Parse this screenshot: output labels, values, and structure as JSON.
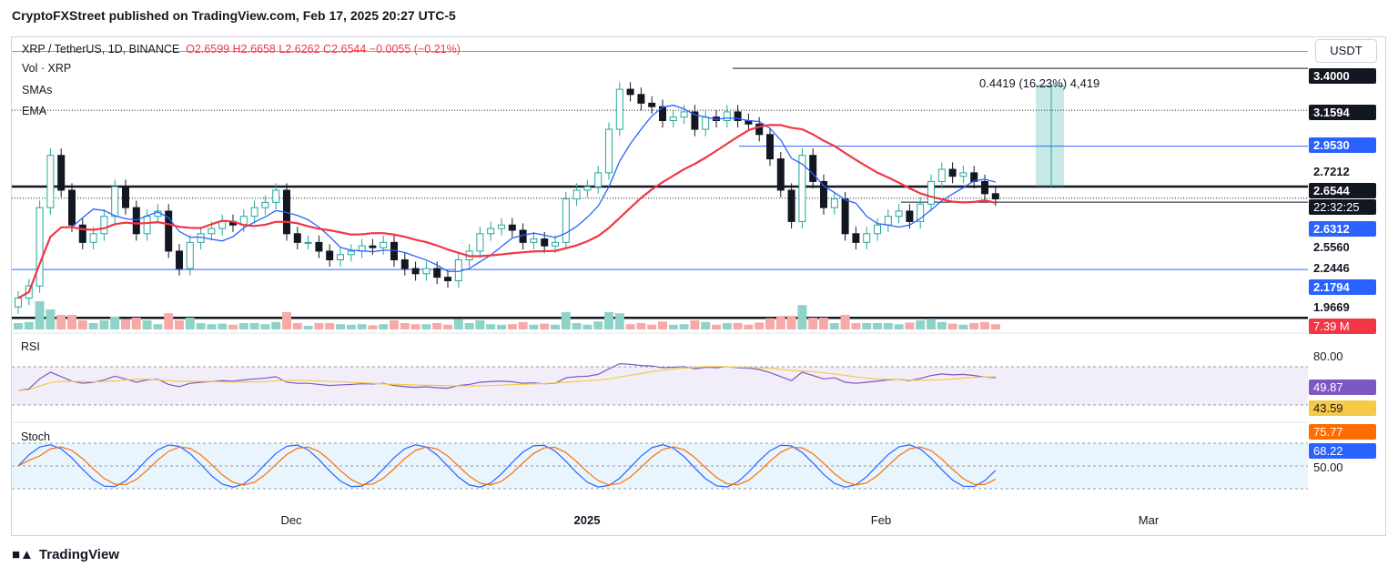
{
  "header": {
    "publisher": "CryptoFXStreet published on TradingView.com, Feb 17, 2025 20:27 UTC-5"
  },
  "currency_button": "USDT",
  "legend": {
    "symbol": "XRP / TetherUS, 1D, BINANCE",
    "o": "O2.6599",
    "h": "H2.6658",
    "l": "L2.6262",
    "c": "C2.6544",
    "change": "−0.0055 (−0.21%)",
    "vol": "Vol · XRP",
    "smas": "SMAs",
    "ema": "EMA"
  },
  "measure_label": "0.4419 (16.23%) 4,419",
  "price_tags": {
    "t1": "3.4000",
    "t2": "3.1594",
    "t3": "2.9530",
    "t4": "2.7212",
    "t5": "2.6544",
    "t6": "22:32:25",
    "t7": "2.6312",
    "t8": "2.5560",
    "t9": "2.2446",
    "t10": "2.1794",
    "t11": "1.9669",
    "t12": "7.39 M"
  },
  "rsi": {
    "label": "RSI",
    "level": "80.00",
    "value": "49.87",
    "ma_value": "43.59"
  },
  "stoch": {
    "label": "Stoch",
    "k_value": "75.77",
    "d_value": "68.22",
    "level": "50.00"
  },
  "x_axis": [
    "Dec",
    "2025",
    "Feb",
    "Mar"
  ],
  "footer": {
    "brand": "TradingView"
  },
  "colors": {
    "up": "#26a69a",
    "down": "#131722",
    "ema": "#f23645",
    "sma": "#2962ff",
    "rsi": "#7e57c2",
    "rsi_ma": "#f7c948",
    "stoch_k": "#2962ff",
    "stoch_d": "#ff6d00"
  },
  "chart_data": {
    "type": "candlestick",
    "title": "XRP / TetherUS, 1D, BINANCE",
    "ylim": [
      1.9,
      3.5
    ],
    "horizontal_levels": [
      3.4,
      3.1594,
      2.953,
      2.7212,
      2.6312,
      2.556,
      2.2446,
      1.9669
    ],
    "last_price": 2.6544,
    "close_series": [
      2.08,
      2.15,
      2.6,
      2.9,
      2.7,
      2.5,
      2.4,
      2.45,
      2.55,
      2.72,
      2.6,
      2.45,
      2.55,
      2.58,
      2.35,
      2.25,
      2.4,
      2.45,
      2.48,
      2.52,
      2.5,
      2.55,
      2.6,
      2.63,
      2.7,
      2.45,
      2.4,
      2.4,
      2.35,
      2.3,
      2.33,
      2.35,
      2.38,
      2.37,
      2.4,
      2.3,
      2.25,
      2.22,
      2.25,
      2.2,
      2.18,
      2.3,
      2.35,
      2.45,
      2.48,
      2.5,
      2.47,
      2.4,
      2.42,
      2.38,
      2.4,
      2.65,
      2.7,
      2.72,
      2.8,
      3.05,
      3.28,
      3.25,
      3.2,
      3.18,
      3.1,
      3.12,
      3.15,
      3.05,
      3.12,
      3.1,
      3.15,
      3.1,
      3.08,
      3.02,
      2.88,
      2.7,
      2.52,
      2.9,
      2.75,
      2.6,
      2.65,
      2.45,
      2.4,
      2.45,
      2.5,
      2.55,
      2.58,
      2.52,
      2.62,
      2.75,
      2.82,
      2.78,
      2.8,
      2.75,
      2.68,
      2.65
    ],
    "volume_last": "7.39 M",
    "rsi": {
      "value": 49.87,
      "ma": 43.59,
      "upper": 80,
      "lower": 20
    },
    "stoch": {
      "k": 75.77,
      "d": 68.22,
      "upper": 80,
      "mid": 50,
      "lower": 20
    }
  }
}
